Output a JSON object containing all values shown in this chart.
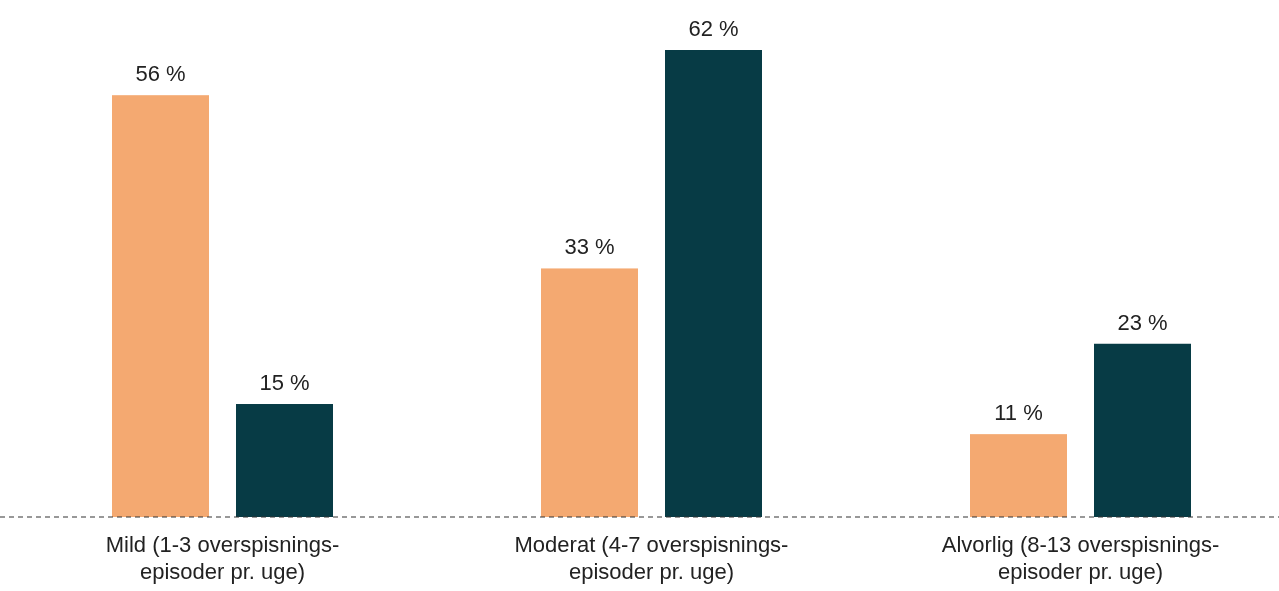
{
  "chart_data": {
    "type": "bar",
    "categories": [
      "Mild (1-3 overspisnings-\nepisoder pr. uge)",
      "Moderat (4-7 overspisnings-\nepisoder pr. uge)",
      "Alvorlig (8-13 overspisnings-\nepisoder pr. uge)"
    ],
    "series": [
      {
        "color": "#f4a971",
        "values": [
          56,
          33,
          11
        ],
        "value_labels": [
          "56 %",
          "33 %",
          "11 %"
        ]
      },
      {
        "color": "#073b45",
        "values": [
          15,
          62,
          23
        ],
        "value_labels": [
          "15 %",
          "62 %",
          "23 %"
        ]
      }
    ]
  }
}
